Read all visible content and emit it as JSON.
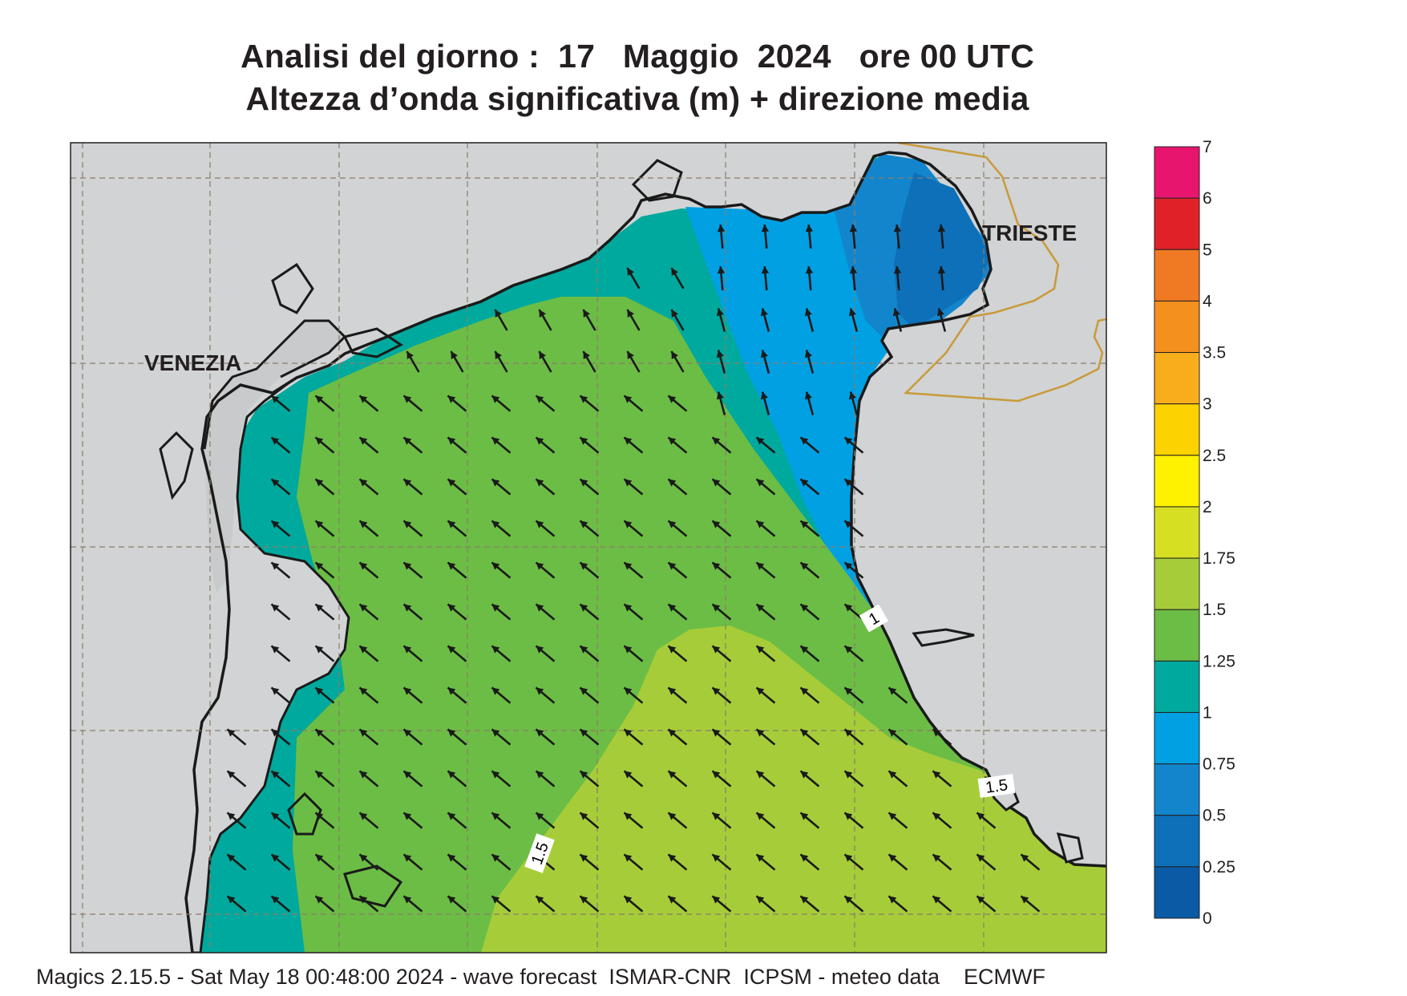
{
  "title": {
    "line1": "Analisi del giorno :  17   Maggio  2024   ore 00 UTC",
    "line2": "Altezza d’onda significativa (m) + direzione media"
  },
  "places": {
    "venezia": "VENEZIA",
    "trieste": "TRIESTE"
  },
  "contour_labels": [
    "1",
    "1.5",
    "1.5"
  ],
  "legend": {
    "ticks": [
      "7",
      "6",
      "5",
      "4",
      "3.5",
      "3",
      "2.5",
      "2",
      "1.75",
      "1.5",
      "1.25",
      "1",
      "0.75",
      "0.5",
      "0.25",
      "0"
    ],
    "colors": [
      "#e8156f",
      "#e02228",
      "#f07a24",
      "#f4901e",
      "#f8ae1c",
      "#fcd200",
      "#fff200",
      "#d7df23",
      "#a6cd39",
      "#6cbd45",
      "#00a99d",
      "#00a0e3",
      "#1385cc",
      "#0d70b9",
      "#0a5aa5"
    ]
  },
  "map_colors": {
    "land": "#d1d3d4",
    "grid": "#8a7d6b",
    "border": "#c99a3a",
    "coast": "#1a1a1a",
    "arrow": "#1a1a1a"
  },
  "footer": "Magics 2.15.5 - Sat May 18 00:48:00 2024 - wave forecast  ISMAR-CNR  ICPSM - meteo data    ECMWF"
}
